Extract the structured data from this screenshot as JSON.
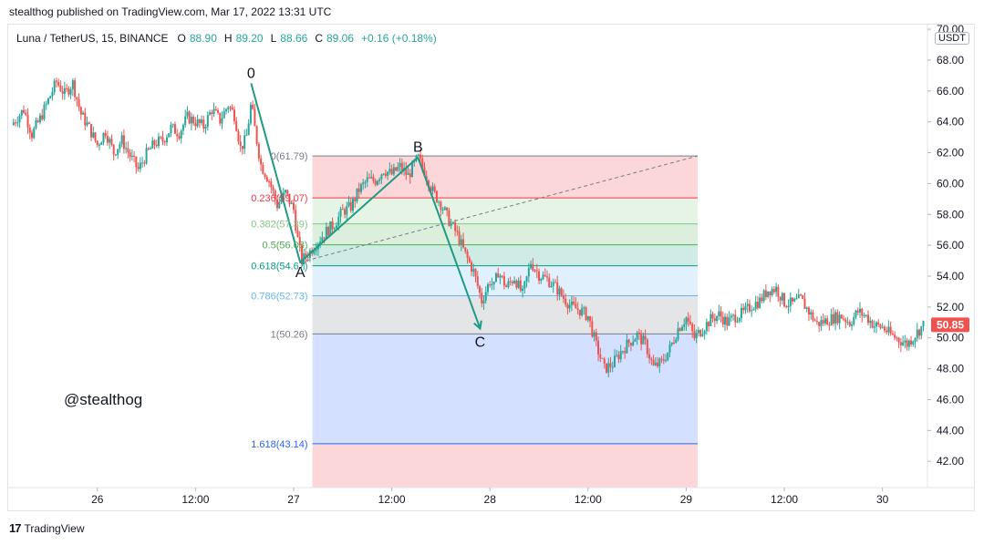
{
  "publish_line": "stealthog published on TradingView.com, Mar 17, 2022 13:31 UTC",
  "legend": {
    "symbol": "Luna / TetherUS, 15, BINANCE",
    "open_label": "O",
    "open": "88.90",
    "high_label": "H",
    "high": "89.20",
    "low_label": "L",
    "low": "88.66",
    "close_label": "C",
    "close": "89.06",
    "change": "+0.16 (+0.18%)"
  },
  "currency": "USDT",
  "watermark": "@stealthog",
  "footer": {
    "logo": "17",
    "brand": "TradingView"
  },
  "colors": {
    "up": "#26a69a",
    "down": "#ef5350",
    "pattern_line": "#1e9a85",
    "price_tag": "#ef5350"
  },
  "chart_data": {
    "type": "candlestick",
    "interval": "15",
    "y_ticks": [
      42.0,
      44.0,
      46.0,
      48.0,
      50.0,
      52.0,
      54.0,
      56.0,
      58.0,
      60.0,
      62.0,
      64.0,
      66.0,
      68.0,
      70.0
    ],
    "y_tick_labels": [
      "42.00",
      "44.00",
      "46.00",
      "48.00",
      "50.00",
      "52.00",
      "54.00",
      "56.00",
      "58.00",
      "60.00",
      "62.00",
      "64.00",
      "66.00",
      "68.00",
      "70.00"
    ],
    "ylim": [
      40.3,
      70.3
    ],
    "x_ticks": [
      {
        "t": 0,
        "label": "26"
      },
      {
        "t": 12,
        "label": "12:00"
      },
      {
        "t": 24,
        "label": "27"
      },
      {
        "t": 36,
        "label": "12:00"
      },
      {
        "t": 48,
        "label": "28"
      },
      {
        "t": 60,
        "label": "12:00"
      },
      {
        "t": 72,
        "label": "29"
      },
      {
        "t": 84,
        "label": "12:00"
      },
      {
        "t": 96,
        "label": "30"
      }
    ],
    "xlim": [
      -10.9,
      101.5
    ],
    "last_price": "50.85",
    "price_path": [
      [
        -10.5,
        63.8
      ],
      [
        -9,
        64.8
      ],
      [
        -8,
        63.2
      ],
      [
        -7,
        64.2
      ],
      [
        -6,
        65.4
      ],
      [
        -5,
        66.6
      ],
      [
        -4,
        65.8
      ],
      [
        -3,
        66.5
      ],
      [
        -2,
        64.5
      ],
      [
        -1,
        63.6
      ],
      [
        0,
        62.5
      ],
      [
        1,
        63.4
      ],
      [
        2,
        62.0
      ],
      [
        3,
        62.8
      ],
      [
        4,
        61.8
      ],
      [
        5,
        60.9
      ],
      [
        6,
        61.9
      ],
      [
        7,
        62.6
      ],
      [
        8,
        62.8
      ],
      [
        9,
        63.6
      ],
      [
        10,
        63.3
      ],
      [
        11,
        64.3
      ],
      [
        12,
        64.0
      ],
      [
        13,
        63.7
      ],
      [
        14,
        64.8
      ],
      [
        15,
        64.1
      ],
      [
        16,
        65.1
      ],
      [
        16.8,
        64.4
      ],
      [
        17.5,
        62.3
      ],
      [
        18.2,
        62.9
      ],
      [
        18.8,
        65.2
      ],
      [
        19.3,
        63.4
      ],
      [
        20,
        61.2
      ],
      [
        21,
        60.2
      ],
      [
        22,
        58.6
      ],
      [
        23,
        59.4
      ],
      [
        24,
        58.3
      ],
      [
        24.6,
        56.0
      ],
      [
        25,
        55.0
      ],
      [
        26,
        55.6
      ],
      [
        27,
        56.3
      ],
      [
        28,
        56.9
      ],
      [
        29,
        57.4
      ],
      [
        30,
        58.2
      ],
      [
        31,
        58.5
      ],
      [
        32,
        59.6
      ],
      [
        33,
        60.2
      ],
      [
        34,
        60.2
      ],
      [
        35,
        60.9
      ],
      [
        36,
        60.6
      ],
      [
        37,
        61.1
      ],
      [
        38,
        60.5
      ],
      [
        39.2,
        61.7
      ],
      [
        40,
        60.8
      ],
      [
        41,
        59.5
      ],
      [
        42,
        58.7
      ],
      [
        43,
        57.6
      ],
      [
        44,
        56.7
      ],
      [
        45,
        55.4
      ],
      [
        46,
        54.3
      ],
      [
        47,
        52.4
      ],
      [
        48,
        53.7
      ],
      [
        48.5,
        53.3
      ],
      [
        49,
        54.3
      ],
      [
        50,
        53.3
      ],
      [
        51,
        53.9
      ],
      [
        52,
        52.8
      ],
      [
        53,
        54.9
      ],
      [
        54,
        54.1
      ],
      [
        55,
        53.8
      ],
      [
        56,
        53.3
      ],
      [
        57,
        52.6
      ],
      [
        58,
        52.0
      ],
      [
        59,
        51.8
      ],
      [
        60,
        51.4
      ],
      [
        61,
        49.5
      ],
      [
        62,
        48.0
      ],
      [
        63,
        48.3
      ],
      [
        64,
        49.1
      ],
      [
        65,
        49.7
      ],
      [
        66,
        50.2
      ],
      [
        67,
        49.6
      ],
      [
        68,
        48.1
      ],
      [
        69,
        48.4
      ],
      [
        70,
        49.3
      ],
      [
        71,
        50.6
      ],
      [
        72,
        51.3
      ],
      [
        73,
        50.0
      ],
      [
        74,
        50.6
      ],
      [
        75,
        51.2
      ],
      [
        76,
        51.5
      ],
      [
        77,
        51.0
      ],
      [
        78,
        51.4
      ],
      [
        79,
        51.6
      ],
      [
        80,
        52.1
      ],
      [
        81,
        52.4
      ],
      [
        82,
        53.1
      ],
      [
        83,
        53.2
      ],
      [
        84,
        52.3
      ],
      [
        85,
        52.2
      ],
      [
        86,
        52.5
      ],
      [
        87,
        51.7
      ],
      [
        88,
        50.9
      ],
      [
        89,
        51.1
      ],
      [
        90,
        51.3
      ],
      [
        91,
        51.4
      ],
      [
        92,
        51.0
      ],
      [
        93,
        51.7
      ],
      [
        94,
        51.4
      ],
      [
        95,
        50.8
      ],
      [
        96,
        50.7
      ],
      [
        97,
        50.2
      ],
      [
        98,
        49.9
      ],
      [
        99,
        49.6
      ],
      [
        100,
        50.2
      ],
      [
        101,
        50.85
      ]
    ],
    "xabc_points": [
      {
        "label": "0",
        "t": 18.8,
        "v": 66.5
      },
      {
        "label": "A",
        "t": 24.8,
        "v": 54.9
      },
      {
        "label": "B",
        "t": 39.2,
        "v": 61.7
      },
      {
        "label": "C",
        "t": 46.8,
        "v": 50.6
      }
    ],
    "fib_retracement": {
      "t_start": 26.3,
      "t_end": 73.4,
      "trend_from": {
        "t": 24.8,
        "v": 54.9
      },
      "trend_to": {
        "t": 73.4,
        "v": 61.79
      },
      "levels": [
        {
          "label": "0(61.79)",
          "value": 61.79,
          "color": "#787b86"
        },
        {
          "label": "0.236(59.07)",
          "value": 59.07,
          "color": "#f23645"
        },
        {
          "label": "0.382(57.39)",
          "value": 57.39,
          "color": "#81c784"
        },
        {
          "label": "0.5(56.03)",
          "value": 56.03,
          "color": "#4caf50"
        },
        {
          "label": "0.618(54.67)",
          "value": 54.67,
          "color": "#089981"
        },
        {
          "label": "0.786(52.73)",
          "value": 52.73,
          "color": "#64b5f6"
        },
        {
          "label": "1(50.26)",
          "value": 50.26,
          "color": "#787b86"
        },
        {
          "label": "1.618(43.14)",
          "value": 43.14,
          "color": "#2962ff"
        }
      ],
      "bands": [
        {
          "from": 61.79,
          "to": 59.07,
          "color": "#f23645"
        },
        {
          "from": 59.07,
          "to": 57.39,
          "color": "#81c784"
        },
        {
          "from": 57.39,
          "to": 56.03,
          "color": "#4caf50"
        },
        {
          "from": 56.03,
          "to": 54.67,
          "color": "#089981"
        },
        {
          "from": 54.67,
          "to": 52.73,
          "color": "#64b5f6"
        },
        {
          "from": 52.73,
          "to": 50.26,
          "color": "#787b86"
        },
        {
          "from": 50.26,
          "to": 43.14,
          "color": "#2962ff"
        },
        {
          "from": 43.14,
          "to": 40.3,
          "color": "#f23645"
        }
      ]
    }
  }
}
